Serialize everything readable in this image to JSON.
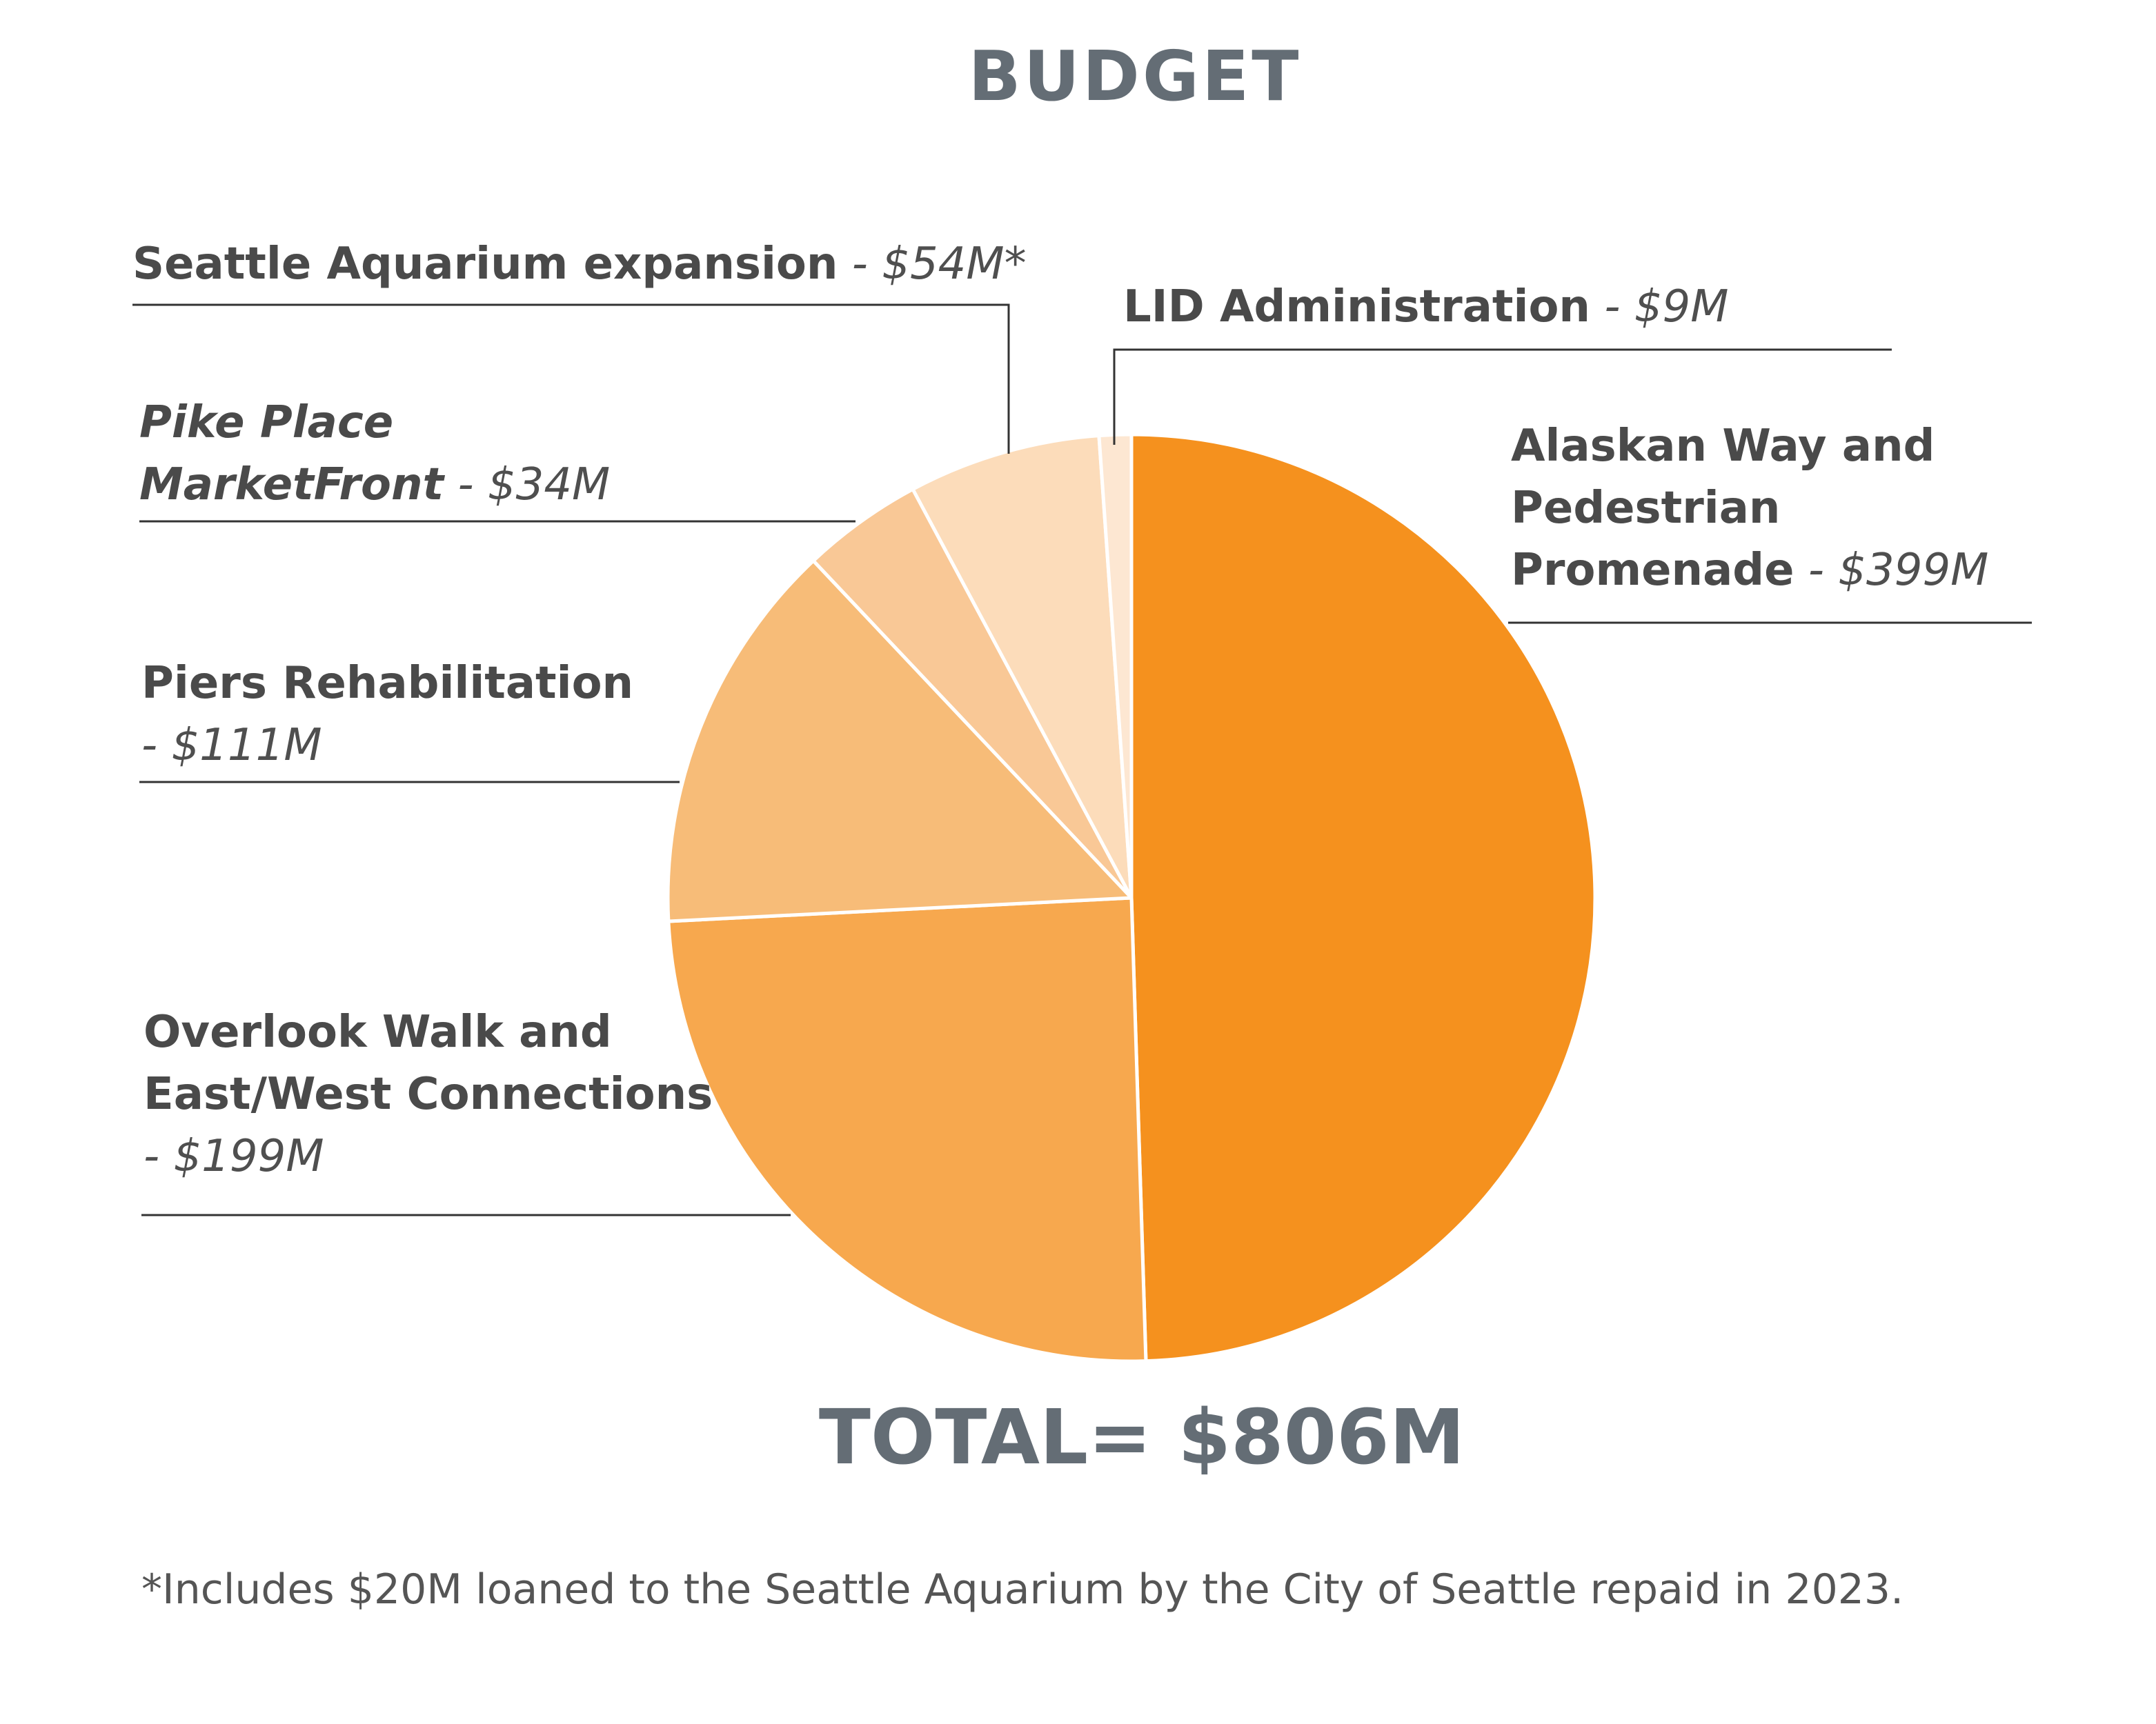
{
  "colors": {
    "title": "#646d75",
    "label": "#4a4a4a",
    "leader_line": "#333333",
    "slice_border": "#ffffff"
  },
  "chart_data": {
    "type": "pie",
    "title": "BUDGET",
    "unit": "$M",
    "total_label": "TOTAL= $806M",
    "footnote": "*Includes $20M loaned to the Seattle Aquarium by the City of Seattle repaid in 2023.",
    "slices": [
      {
        "label_line1": "Alaskan Way and",
        "label_line2": "Pedestrian",
        "label_line3": "Promenade",
        "value_text": "- $399M",
        "value": 399,
        "color": "#f5911e"
      },
      {
        "label_line1": "Overlook Walk and",
        "label_line2": "East/West Connections",
        "value_text": "- $199M",
        "value": 199,
        "color": "#f7a84e"
      },
      {
        "label_line1": "Piers Rehabilitation",
        "value_text": "- $111M",
        "value": 111,
        "color": "#f7bc78"
      },
      {
        "label_line1": "Pike Place",
        "label_line2": "MarketFront",
        "value_text": "- $34M",
        "value": 34,
        "color": "#f9c896"
      },
      {
        "label_line1": "Seattle Aquarium expansion",
        "value_text": "- $54M*",
        "value": 54,
        "color": "#fcdcba"
      },
      {
        "label_line1": "LID Administration",
        "value_text": "- $9M",
        "value": 9,
        "color": "#fde7d2"
      }
    ]
  }
}
